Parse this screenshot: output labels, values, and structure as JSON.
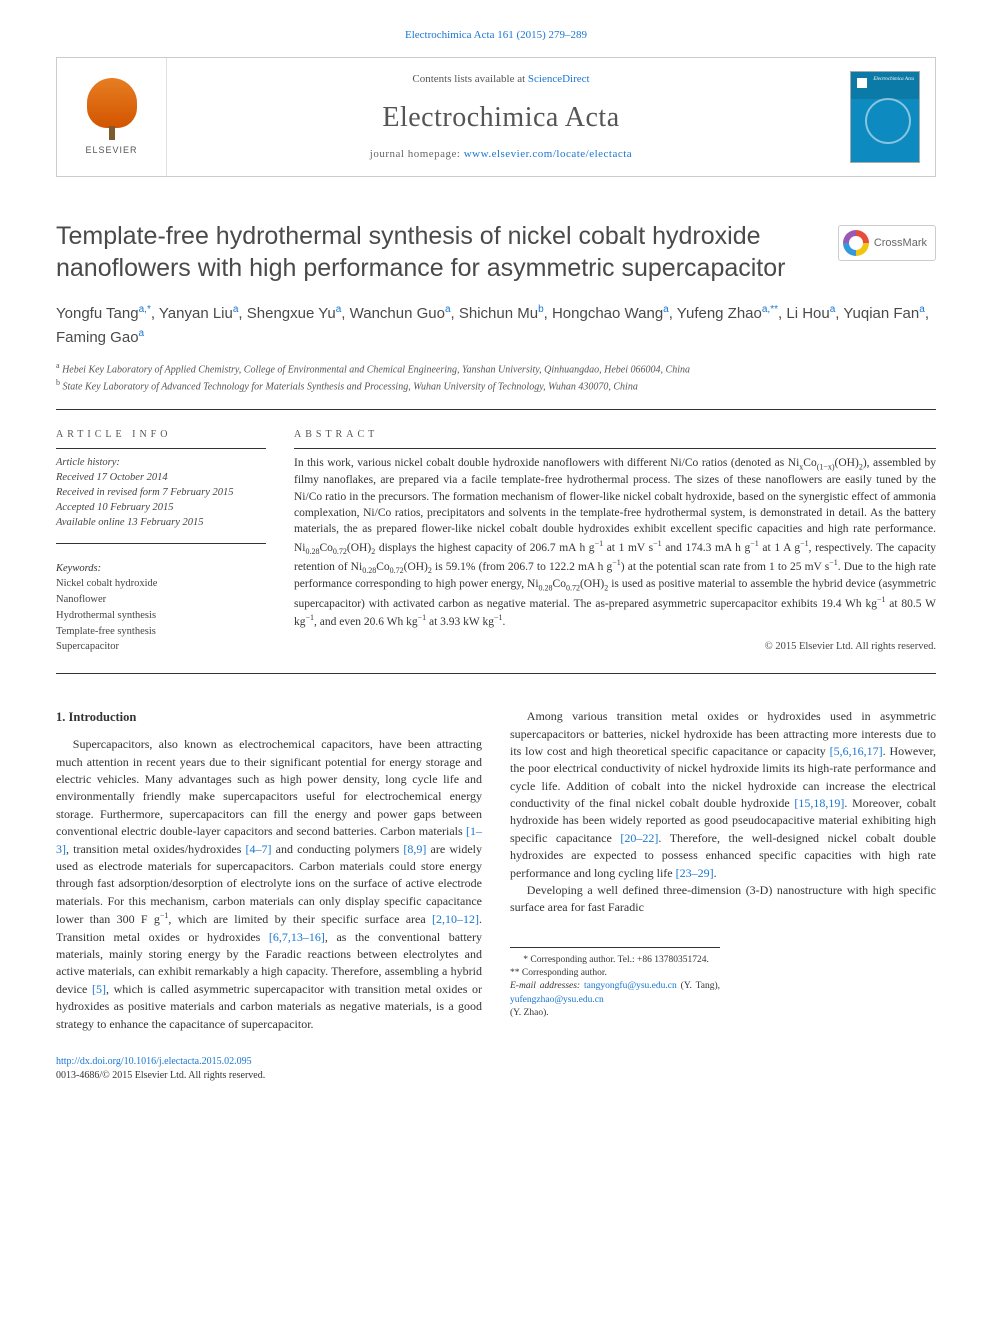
{
  "top_citation_link": "Electrochimica Acta 161 (2015) 279–289",
  "masthead": {
    "contents_text_pre": "Contents lists available at ",
    "contents_link": "ScienceDirect",
    "journal_name": "Electrochimica Acta",
    "homepage_label": "journal homepage: ",
    "homepage_url": "www.elsevier.com/locate/electacta",
    "elsevier_label": "ELSEVIER",
    "cover_title": "Electrochimica\nActa"
  },
  "crossmark_label": "CrossMark",
  "article": {
    "title": "Template-free hydrothermal synthesis of nickel cobalt hydroxide nanoflowers with high performance for asymmetric supercapacitor",
    "authors_html": "Yongfu Tang<sup>a,</sup><sup class='star'>*</sup>, Yanyan Liu<sup>a</sup>, Shengxue Yu<sup>a</sup>, Wanchun Guo<sup>a</sup>, Shichun Mu<sup>b</sup>, Hongchao Wang<sup>a</sup>, Yufeng Zhao<sup>a,</sup><sup class='star'>**</sup>, Li Hou<sup>a</sup>, Yuqian Fan<sup>a</sup>, Faming Gao<sup>a</sup>",
    "affiliations": [
      {
        "sup": "a",
        "text": "Hebei Key Laboratory of Applied Chemistry, College of Environmental and Chemical Engineering, Yanshan University, Qinhuangdao, Hebei 066004, China"
      },
      {
        "sup": "b",
        "text": "State Key Laboratory of Advanced Technology for Materials Synthesis and Processing, Wuhan University of Technology, Wuhan 430070, China"
      }
    ]
  },
  "meta": {
    "info_head": "ARTICLE INFO",
    "abstract_head": "ABSTRACT",
    "history_label": "Article history:",
    "history": [
      "Received 17 October 2014",
      "Received in revised form 7 February 2015",
      "Accepted 10 February 2015",
      "Available online 13 February 2015"
    ],
    "keywords_label": "Keywords:",
    "keywords": [
      "Nickel cobalt hydroxide",
      "Nanoflower",
      "Hydrothermal synthesis",
      "Template-free synthesis",
      "Supercapacitor"
    ]
  },
  "abstract_html": "In this work, various nickel cobalt double hydroxide nanoflowers with different Ni/Co ratios (denoted as Ni<sub>x</sub>Co<sub>(1−x)</sub>(OH)<sub>2</sub>), assembled by filmy nanoflakes, are prepared via a facile template-free hydrothermal process. The sizes of these nanoflowers are easily tuned by the Ni/Co ratio in the precursors. The formation mechanism of flower-like nickel cobalt hydroxide, based on the synergistic effect of ammonia complexation, Ni/Co ratios, precipitators and solvents in the template-free hydrothermal system, is demonstrated in detail. As the battery materials, the as prepared flower-like nickel cobalt double hydroxides exhibit excellent specific capacities and high rate performance. Ni<sub>0.28</sub>Co<sub>0.72</sub>(OH)<sub>2</sub> displays the highest capacity of 206.7 mA h g<sup>−1</sup> at 1 mV s<sup>−1</sup> and 174.3 mA h g<sup>−1</sup> at 1 A g<sup>−1</sup>, respectively. The capacity retention of Ni<sub>0.28</sub>Co<sub>0.72</sub>(OH)<sub>2</sub> is 59.1% (from 206.7 to 122.2 mA h g<sup>−1</sup>) at the potential scan rate from 1 to 25 mV s<sup>−1</sup>. Due to the high rate performance corresponding to high power energy, Ni<sub>0.28</sub>Co<sub>0.72</sub>(OH)<sub>2</sub> is used as positive material to assemble the hybrid device (asymmetric supercapacitor) with activated carbon as negative material. The as-prepared asymmetric supercapacitor exhibits 19.4 Wh kg<sup>−1</sup> at 80.5 W kg<sup>−1</sup>, and even 20.6 Wh kg<sup>−1</sup> at 3.93 kW kg<sup>−1</sup>.",
  "copyright": "© 2015 Elsevier Ltd. All rights reserved.",
  "section1_heading": "1. Introduction",
  "body_html": "<p>Supercapacitors, also known as electrochemical capacitors, have been attracting much attention in recent years due to their significant potential for energy storage and electric vehicles. Many advantages such as high power density, long cycle life and environmentally friendly make supercapacitors useful for electrochemical energy storage. Furthermore, supercapacitors can fill the energy and power gaps between conventional electric double-layer capacitors and second batteries. Carbon materials <span class='cite'>[1–3]</span>, transition metal oxides/hydroxides <span class='cite'>[4–7]</span> and conducting polymers <span class='cite'>[8,9]</span> are widely used as electrode materials for supercapacitors. Carbon materials could store energy through fast adsorption/desorption of electrolyte ions on the surface of active electrode materials. For this mechanism, carbon materials can only display specific capacitance lower than 300 F g<sup>−1</sup>, which are limited by their specific surface area <span class='cite'>[2,10–12]</span>. Transition metal oxides or hydroxides <span class='cite'>[6,7,13–16]</span>, as the conventional battery materials, mainly storing energy by the Faradic reactions between electrolytes and active materials, can exhibit remarkably a high capacity. Therefore, assembling a hybrid device <span class='cite'>[5]</span>, which is called asymmetric supercapacitor with transition metal oxides or hydroxides as positive materials and carbon materials as negative materials, is a good strategy to enhance the capacitance of supercapacitor.</p><p>Among various transition metal oxides or hydroxides used in asymmetric supercapacitors or batteries, nickel hydroxide has been attracting more interests due to its low cost and high theoretical specific capacitance or capacity <span class='cite'>[5,6,16,17]</span>. However, the poor electrical conductivity of nickel hydroxide limits its high-rate performance and cycle life. Addition of cobalt into the nickel hydroxide can increase the electrical conductivity of the final nickel cobalt double hydroxide <span class='cite'>[15,18,19]</span>. Moreover, cobalt hydroxide has been widely reported as good pseudocapacitive material exhibiting high specific capacitance <span class='cite'>[20–22]</span>. Therefore, the well-designed nickel cobalt double hydroxides are expected to possess enhanced specific capacities with high rate performance and long cycling life <span class='cite'>[23–29]</span>.</p><p>Developing a well defined three-dimension (3-D) nanostructure with high specific surface area for fast Faradic</p>",
  "footnotes": {
    "line1": "* Corresponding author. Tel.: +86 13780351724.",
    "line2": "** Corresponding author.",
    "emails_label": "E-mail addresses: ",
    "email1": "tangyongfu@ysu.edu.cn",
    "email1_who": " (Y. Tang), ",
    "email2": "yufengzhao@ysu.edu.cn",
    "email2_who": "(Y. Zhao)."
  },
  "footer": {
    "doi": "http://dx.doi.org/10.1016/j.electacta.2015.02.095",
    "issn_line": "0013-4686/© 2015 Elsevier Ltd. All rights reserved."
  },
  "colors": {
    "link": "#1976d2",
    "text": "#333333",
    "heading_gray": "#4a4a4a",
    "rule": "#333333"
  }
}
